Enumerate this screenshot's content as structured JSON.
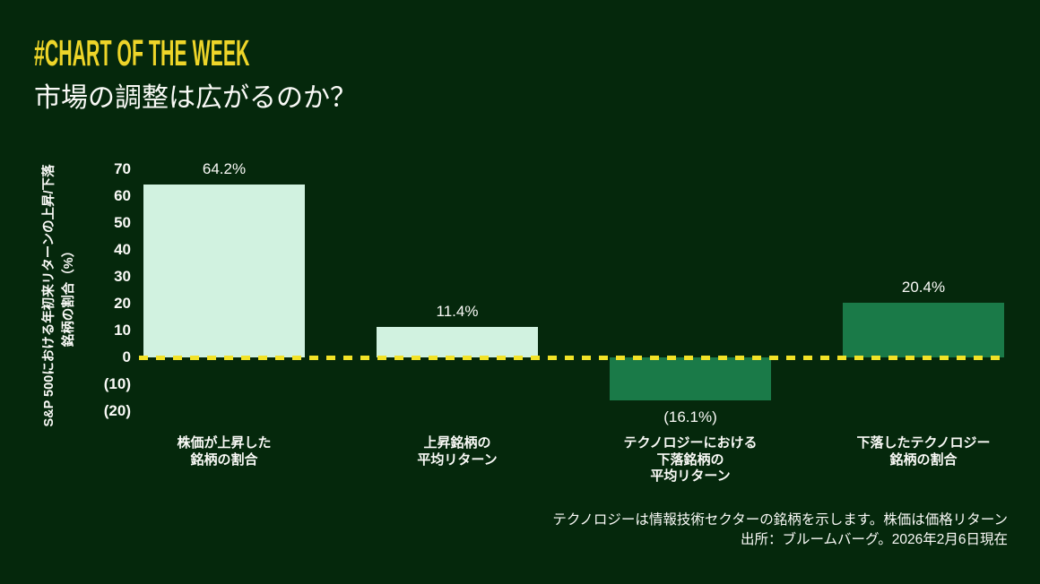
{
  "header": {
    "kicker": "#CHART OF THE WEEK",
    "title": "市場の調整は広がるのか？"
  },
  "colors": {
    "background": "#05280c",
    "kicker_yellow": "#eed529",
    "zero_line_yellow": "#f2e227",
    "bar_light_mint": "#d1f2e0",
    "bar_dark_green": "#1a7a48",
    "text_white": "#fafaf7"
  },
  "chart_data": {
    "type": "bar",
    "title": "市場の調整は広がるのか？",
    "ylabel": "S&P 500における年初来リターンの上昇/下落 銘柄の割合（%）",
    "ylabel_lines": [
      "S&P 500における年初来リターンの上昇/下落",
      "銘柄の割合（%）"
    ],
    "ylim": [
      -20,
      70
    ],
    "grid": "off",
    "legend": "none",
    "yticks": [
      {
        "label": "70",
        "value": 70
      },
      {
        "label": "60",
        "value": 60
      },
      {
        "label": "50",
        "value": 50
      },
      {
        "label": "40",
        "value": 40
      },
      {
        "label": "30",
        "value": 30
      },
      {
        "label": "20",
        "value": 20
      },
      {
        "label": "10",
        "value": 10
      },
      {
        "label": "0",
        "value": 0
      },
      {
        "label": "(10)",
        "value": -10
      },
      {
        "label": "(20)",
        "value": -20
      }
    ],
    "categories": [
      {
        "lines": [
          "株価が上昇した",
          "銘柄の割合"
        ]
      },
      {
        "lines": [
          "上昇銘柄の",
          "平均リターン"
        ]
      },
      {
        "lines": [
          "テクノロジーにおける",
          "下落銘柄の",
          "平均リターン"
        ]
      },
      {
        "lines": [
          "下落したテクノロジー",
          "銘柄の割合"
        ]
      }
    ],
    "values": [
      64.2,
      11.4,
      -16.1,
      20.4
    ],
    "value_labels": [
      "64.2%",
      "11.4%",
      "(16.1%)",
      "20.4%"
    ],
    "bar_colors": [
      "#d1f2e0",
      "#d1f2e0",
      "#1a7a48",
      "#1a7a48"
    ],
    "zero_line": {
      "style": "dashed",
      "color": "#f2e227",
      "value": 0
    }
  },
  "footnote": {
    "line1": "テクノロジーは情報技術セクターの銘柄を示します。株価は価格リターン",
    "line2": "出所：ブルームバーグ。2026年2月6日現在"
  }
}
